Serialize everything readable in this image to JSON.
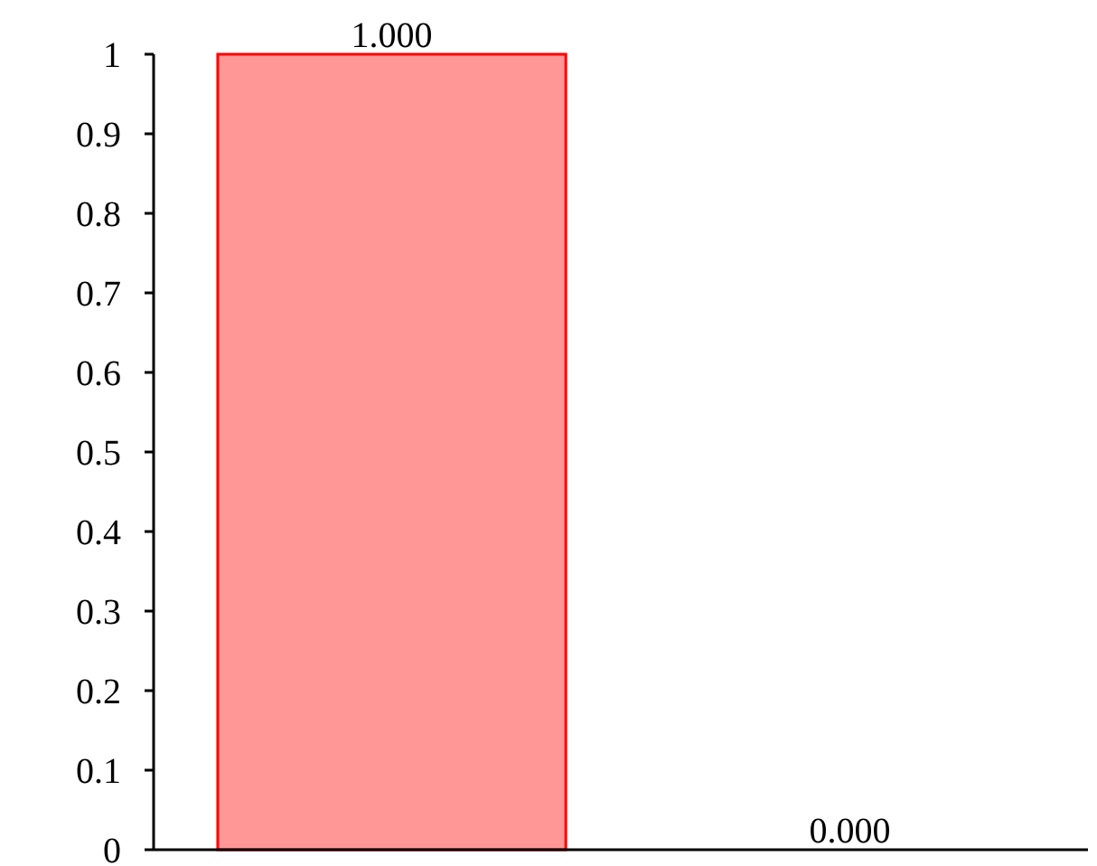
{
  "chart_data": {
    "type": "bar",
    "categories": [
      null,
      null
    ],
    "values": [
      1,
      0
    ],
    "color": "#ff9797",
    "value_labels": [
      "1.000",
      "0.000"
    ],
    "ylim": [
      0,
      1
    ],
    "yticks": [
      0,
      0.1,
      0.2,
      0.3,
      0.4,
      0.5,
      0.6,
      0.7,
      0.8,
      0.9,
      1
    ],
    "grid": false
  }
}
